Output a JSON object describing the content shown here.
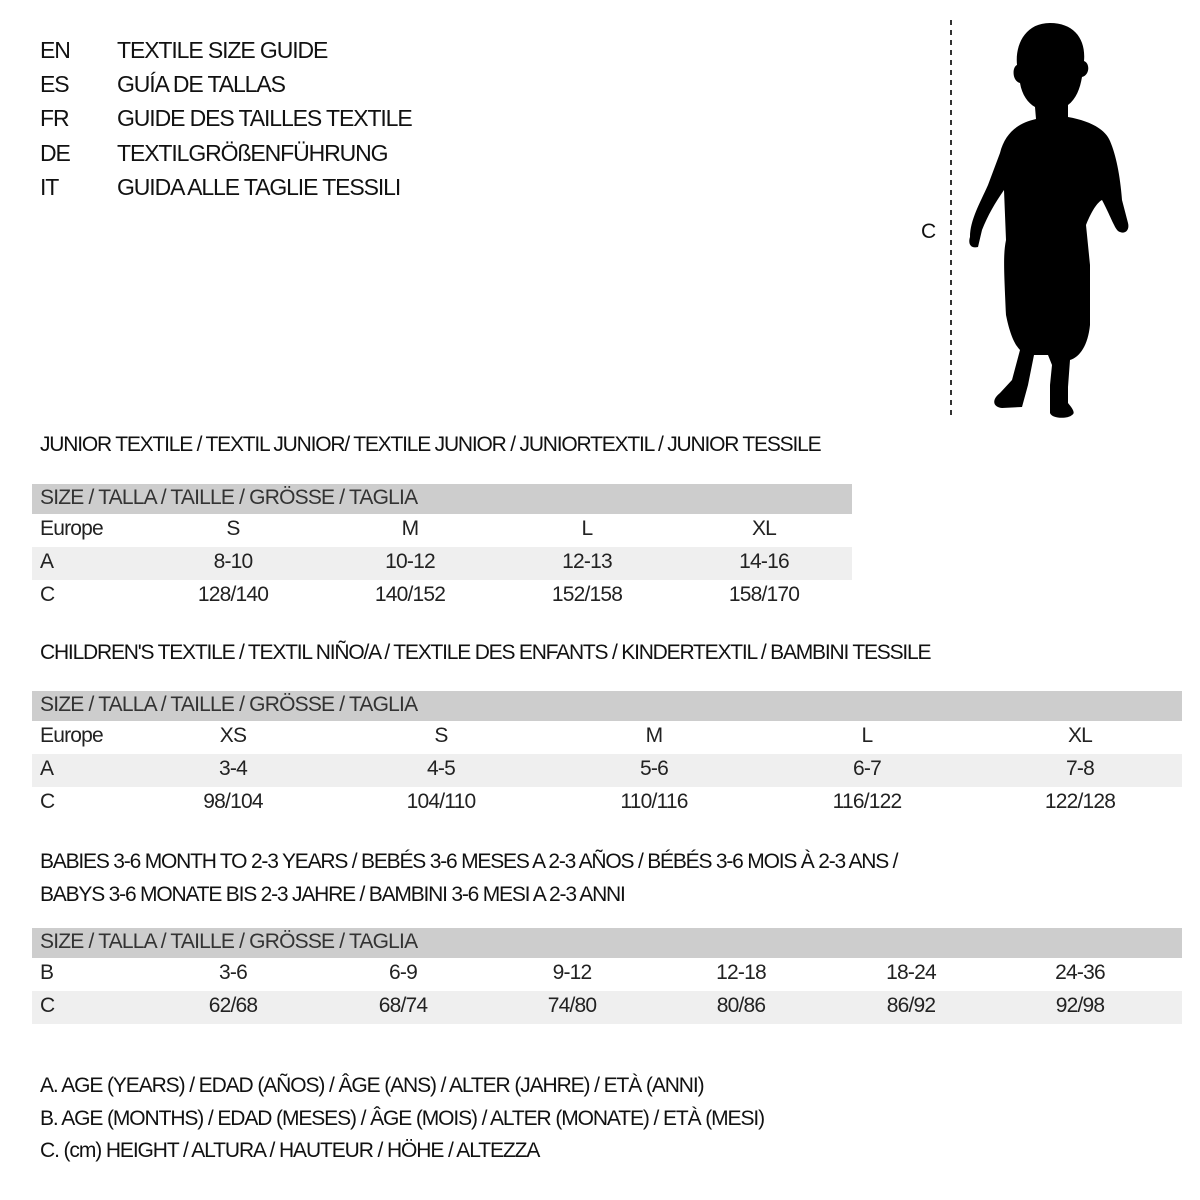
{
  "title_rows": [
    {
      "code": "EN",
      "text": "TEXTILE SIZE GUIDE"
    },
    {
      "code": "ES",
      "text": "GUÍA DE TALLAS"
    },
    {
      "code": "FR",
      "text": "GUIDE DES TAILLES TEXTILE"
    },
    {
      "code": "DE",
      "text": "TEXTILGRÖßENFÜHRUNG"
    },
    {
      "code": "IT",
      "text": "GUIDA ALLE TAGLIE TESSILI"
    }
  ],
  "figure": {
    "measure_label": "C"
  },
  "sections": [
    {
      "heading": [
        "JUNIOR TEXTILE / TEXTIL JUNIOR/ TEXTILE JUNIOR / JUNIORTEXTIL / JUNIOR TESSILE"
      ],
      "header": "SIZE / TALLA / TAILLE / GRÖSSE / TAGLIA",
      "rows": [
        {
          "label": "Europe",
          "values": [
            "S",
            "M",
            "L",
            "XL"
          ]
        },
        {
          "label": "A",
          "values": [
            "8-10",
            "10-12",
            "12-13",
            "14-16"
          ]
        },
        {
          "label": "C",
          "values": [
            "128/140",
            "140/152",
            "152/158",
            "158/170"
          ]
        }
      ]
    },
    {
      "heading": [
        "CHILDREN'S TEXTILE / TEXTIL NIÑO/A / TEXTILE DES ENFANTS / KINDERTEXTIL / BAMBINI TESSILE"
      ],
      "header": "SIZE / TALLA / TAILLE / GRÖSSE / TAGLIA",
      "rows": [
        {
          "label": "Europe",
          "values": [
            "XS",
            "S",
            "M",
            "L",
            "XL"
          ]
        },
        {
          "label": "A",
          "values": [
            "3-4",
            "4-5",
            "5-6",
            "6-7",
            "7-8"
          ]
        },
        {
          "label": "C",
          "values": [
            "98/104",
            "104/110",
            "110/116",
            "116/122",
            "122/128"
          ]
        }
      ]
    },
    {
      "heading": [
        "BABIES 3-6 MONTH TO 2-3 YEARS / BEBÉS 3-6 MESES A 2-3 AÑOS / BÉBÉS 3-6 MOIS À 2-3 ANS /",
        "BABYS 3-6 MONATE BIS 2-3 JAHRE / BAMBINI 3-6 MESI A 2-3 ANNI"
      ],
      "header": "SIZE / TALLA / TAILLE / GRÖSSE / TAGLIA",
      "rows": [
        {
          "label": "B",
          "values": [
            "3-6",
            "6-9",
            "9-12",
            "12-18",
            "18-24",
            "24-36"
          ]
        },
        {
          "label": "C",
          "values": [
            "62/68",
            "68/74",
            "74/80",
            "80/86",
            "86/92",
            "92/98"
          ]
        }
      ]
    }
  ],
  "footnotes": [
    "A. AGE (YEARS) / EDAD (AÑOS) / ÂGE (ANS) / ALTER (JAHRE) / ETÀ (ANNI)",
    "B. AGE (MONTHS) / EDAD (MESES) / ÂGE (MOIS) / ALTER (MONATE) / ETÀ (MESI)",
    "C. (cm) HEIGHT / ALTURA / HAUTEUR / HÖHE / ALTEZZA"
  ],
  "colors": {
    "header_bg": "#cdcdcd",
    "shade_bg": "#efefef",
    "silhouette": "#000000"
  }
}
